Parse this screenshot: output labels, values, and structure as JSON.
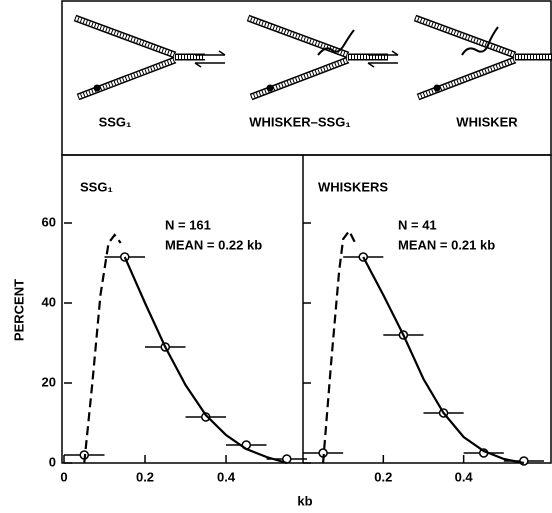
{
  "diagram": {
    "labels": [
      "SSG₁",
      "WHISKER–SSG₁",
      "WHISKER"
    ]
  },
  "chart_data": [
    {
      "type": "line",
      "title": "SSG₁",
      "annotations": [
        "N = 161",
        "MEAN = 0.22 kb"
      ],
      "ylabel": "PERCENT",
      "xlabel": "kb",
      "xlim": [
        0,
        0.59
      ],
      "ylim": [
        0,
        77
      ],
      "xticks": [
        0,
        0.2,
        0.4
      ],
      "yticks": [
        0,
        20,
        40,
        60
      ],
      "ytick_labels": true,
      "color": "#000000",
      "series": [
        {
          "style": "points",
          "x": [
            0.05,
            0.15,
            0.25,
            0.35,
            0.45,
            0.55
          ],
          "values": [
            2,
            51.5,
            29,
            11.5,
            4.5,
            1
          ],
          "xerr": [
            0.05,
            0.05,
            0.05,
            0.05,
            0.05,
            0.05
          ]
        },
        {
          "style": "dashed",
          "x": [
            0.05,
            0.07,
            0.09,
            0.11,
            0.125,
            0.14
          ],
          "values": [
            0,
            20,
            42,
            55,
            57,
            55
          ]
        },
        {
          "style": "solid",
          "x": [
            0.15,
            0.2,
            0.25,
            0.3,
            0.35,
            0.4,
            0.45,
            0.5,
            0.55
          ],
          "values": [
            51.5,
            40,
            29,
            19.5,
            12,
            7,
            3.5,
            1.5,
            0
          ]
        }
      ]
    },
    {
      "type": "line",
      "title": "WHISKERS",
      "annotations": [
        "N = 41",
        "MEAN = 0.21 kb"
      ],
      "xlim": [
        0,
        0.62
      ],
      "ylim": [
        0,
        77
      ],
      "xticks": [
        0.2,
        0.4
      ],
      "yticks": [
        0,
        20,
        40,
        60
      ],
      "ytick_labels": false,
      "color": "#000000",
      "series": [
        {
          "style": "points",
          "x": [
            0.05,
            0.15,
            0.25,
            0.35,
            0.45,
            0.55
          ],
          "values": [
            2.5,
            51.5,
            32,
            12.5,
            2.5,
            0.5
          ],
          "xerr": [
            0.05,
            0.05,
            0.05,
            0.05,
            0.05,
            0.05
          ]
        },
        {
          "style": "dashed",
          "x": [
            0.05,
            0.07,
            0.09,
            0.1,
            0.115,
            0.13
          ],
          "values": [
            0,
            25,
            48,
            56,
            58,
            55
          ]
        },
        {
          "style": "solid",
          "x": [
            0.15,
            0.2,
            0.25,
            0.3,
            0.35,
            0.4,
            0.45,
            0.5,
            0.55
          ],
          "values": [
            51.5,
            42,
            32,
            21,
            12.5,
            6.5,
            3,
            1,
            0
          ]
        }
      ]
    }
  ]
}
